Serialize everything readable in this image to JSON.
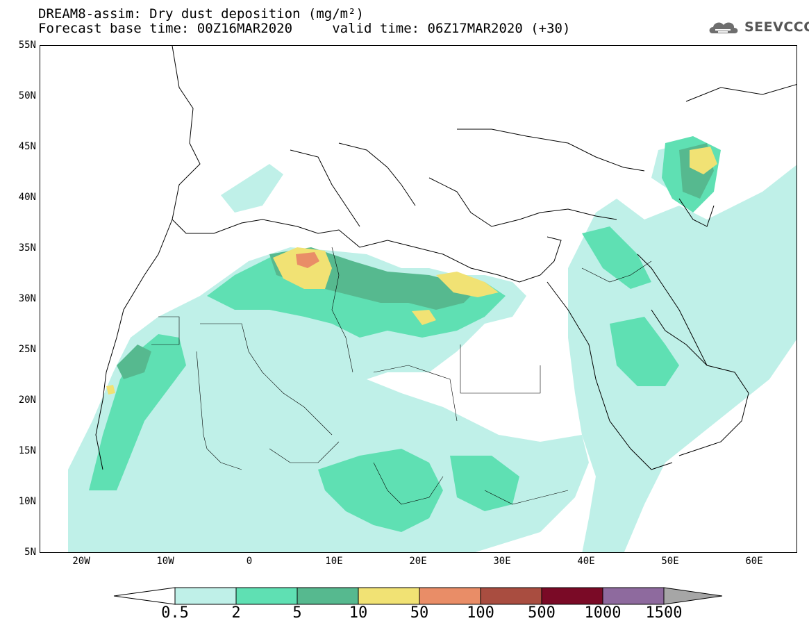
{
  "header": {
    "title_line1": "DREAM8-assim: Dry dust deposition (mg/m²)",
    "title_line2": "Forecast base time: 00Z16MAR2020     valid time: 06Z17MAR2020 (+30)"
  },
  "logo": {
    "text": "SEEVCCC",
    "icon": "cloud-logo-icon"
  },
  "map": {
    "projection": "lat-lon",
    "lon_range": [
      -25,
      65
    ],
    "lat_range": [
      5,
      55
    ],
    "lat_labels": [
      "55N",
      "50N",
      "45N",
      "40N",
      "35N",
      "30N",
      "25N",
      "20N",
      "15N",
      "10N",
      "5N"
    ],
    "lon_labels": [
      "20W",
      "10W",
      "0",
      "10E",
      "20E",
      "30E",
      "40E",
      "50E",
      "60E"
    ],
    "variable": "Dry dust deposition",
    "units": "mg/m²"
  },
  "colorbar": {
    "labels": [
      "0.5",
      "2",
      "5",
      "10",
      "50",
      "100",
      "500",
      "1000",
      "1500"
    ],
    "colors": [
      "#bff0e8",
      "#5fe0b3",
      "#56b98f",
      "#f1e274",
      "#e98d67",
      "#a94d40",
      "#7a0a26",
      "#8e6a9e"
    ],
    "under_color": "#ffffff",
    "over_color": "#a6a6a6"
  },
  "colors": {
    "land_outline": "#000000",
    "background": "#ffffff"
  }
}
